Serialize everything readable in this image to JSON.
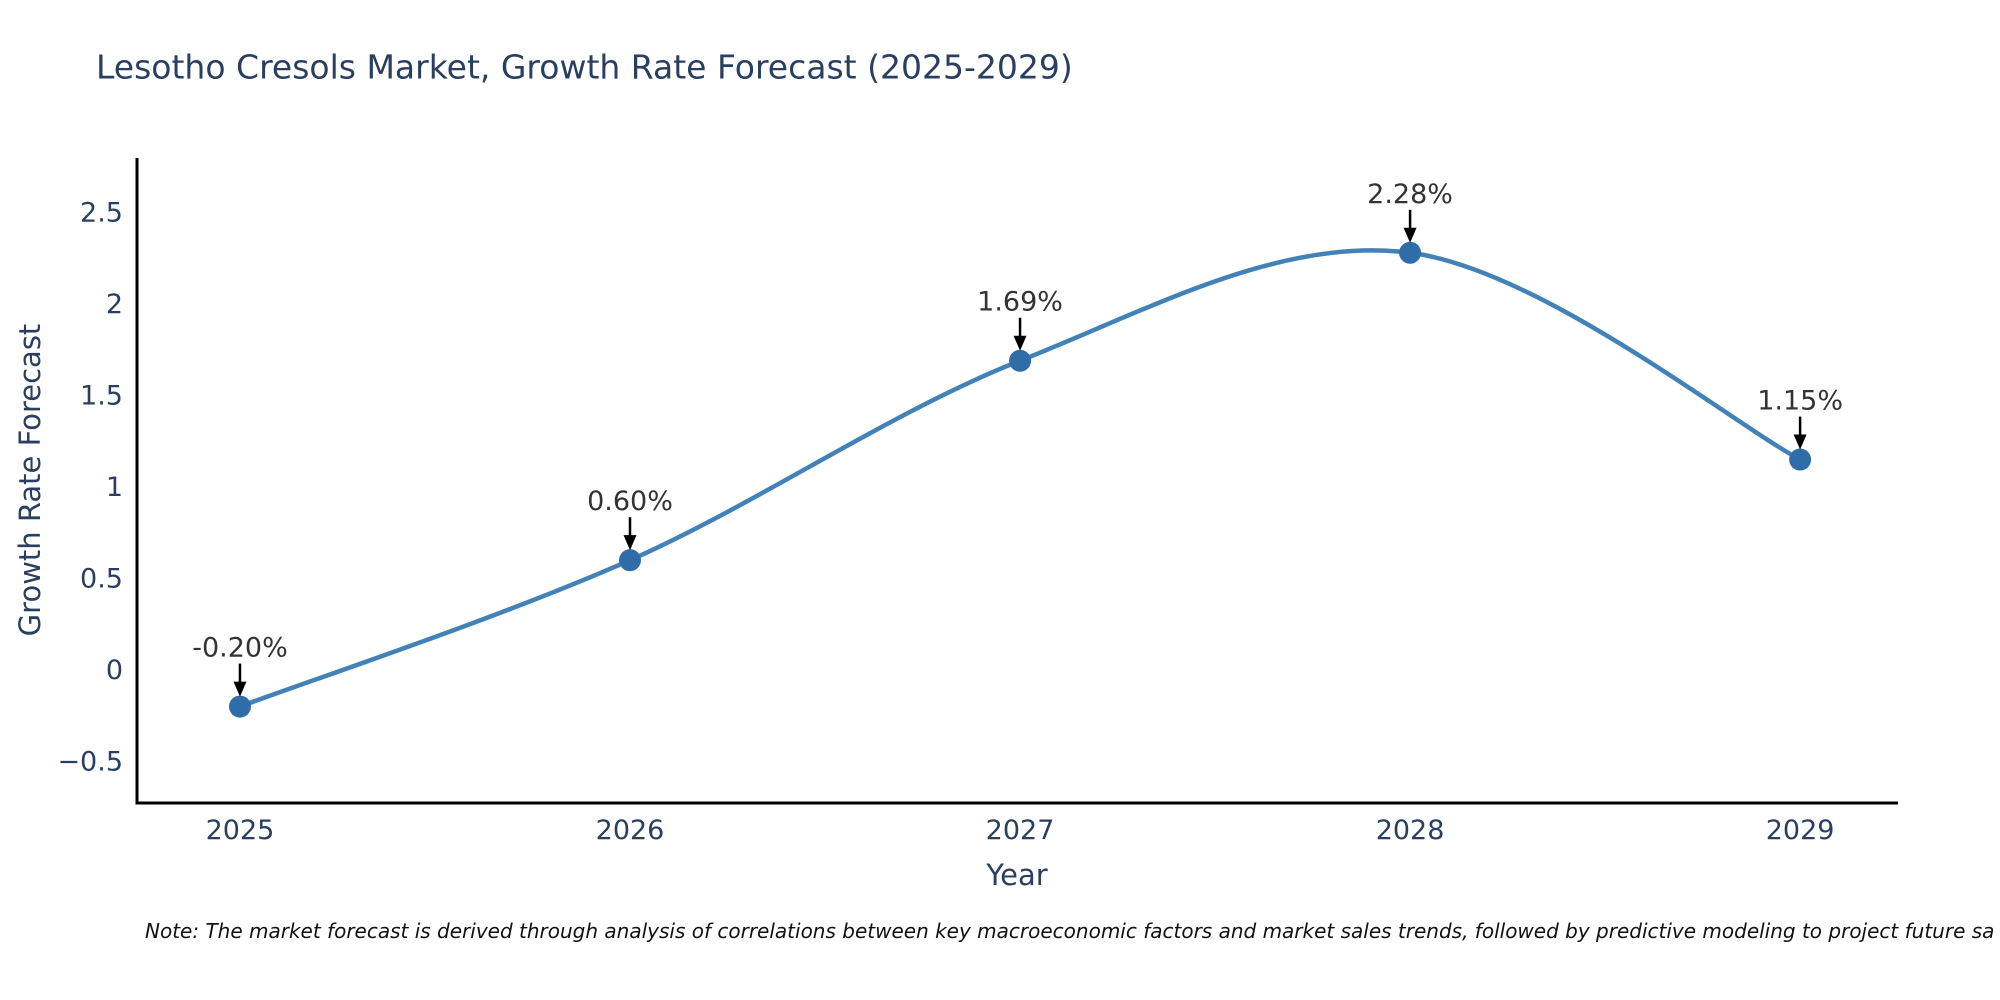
{
  "page": {
    "background": "#ffffff"
  },
  "chart_data": {
    "type": "line",
    "title": "Lesotho Cresols Market, Growth Rate Forecast (2025-2029)",
    "xlabel": "Year",
    "ylabel": "Growth Rate Forecast",
    "x": [
      2025,
      2026,
      2027,
      2028,
      2029
    ],
    "x_tick_labels": [
      "2025",
      "2026",
      "2027",
      "2028",
      "2029"
    ],
    "values": [
      -0.2,
      0.6,
      1.69,
      2.28,
      1.15
    ],
    "point_labels": [
      "-0.20%",
      "0.60%",
      "1.69%",
      "2.28%",
      "1.15%"
    ],
    "y_ticks": [
      -0.5,
      0,
      0.5,
      1,
      1.5,
      2,
      2.5
    ],
    "y_tick_labels": [
      "−0.5",
      "0",
      "0.5",
      "1",
      "1.5",
      "2",
      "2.5"
    ],
    "xlim": [
      2024.736,
      2029.251
    ],
    "ylim": [
      -0.727,
      2.798
    ],
    "line_shape": "spline",
    "grid": false,
    "legend": "none",
    "colors": {
      "line": "#4282b8",
      "marker": "#2f6da8",
      "axis_line": "#000000",
      "tick_text": "#2a3f5f",
      "title_text": "#2a3f5f",
      "annotation_text": "#333333",
      "arrow": "#000000"
    }
  },
  "note": {
    "text": "Note: The market forecast is derived through analysis of correlations between key macroeconomic factors and market sales trends, followed by predictive modeling to project future sa"
  }
}
